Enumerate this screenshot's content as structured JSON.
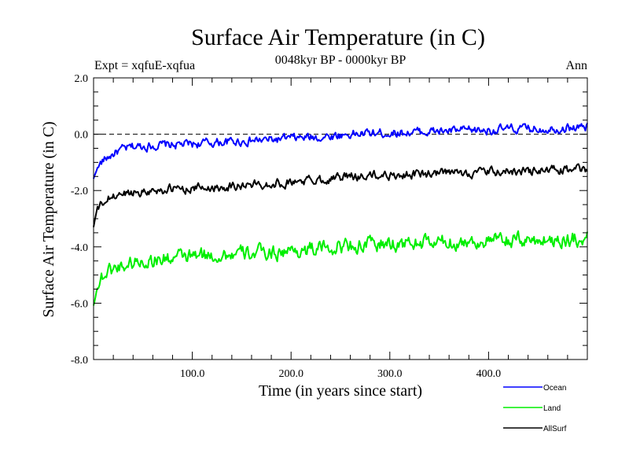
{
  "chart_data": {
    "type": "line",
    "title": "Surface Air Temperature (in C)",
    "subtitle": "0048kyr BP - 0000kyr BP",
    "left_label": "Expt = xqfuE-xqfua",
    "right_label": "Ann",
    "xlabel": "Time (in years since start)",
    "ylabel": "Surface Air Temperature (in C)",
    "xlim": [
      0,
      500
    ],
    "ylim": [
      -8,
      2
    ],
    "xticks": [
      100,
      200,
      300,
      400
    ],
    "xtick_labels": [
      "100.0",
      "200.0",
      "300.0",
      "400.0"
    ],
    "yticks": [
      -8,
      -6,
      -4,
      -2,
      0,
      2
    ],
    "ytick_labels": [
      "-8.0",
      "-6.0",
      "-4.0",
      "-2.0",
      "0.0",
      "2.0"
    ],
    "zero_line": 0,
    "series": [
      {
        "name": "Ocean",
        "color": "#0000ff",
        "points": [
          [
            0,
            -1.6
          ],
          [
            3,
            -1.25
          ],
          [
            8,
            -1.0
          ],
          [
            15,
            -0.8
          ],
          [
            25,
            -0.6
          ],
          [
            40,
            -0.45
          ],
          [
            60,
            -0.4
          ],
          [
            80,
            -0.38
          ],
          [
            100,
            -0.35
          ],
          [
            120,
            -0.3
          ],
          [
            150,
            -0.25
          ],
          [
            180,
            -0.2
          ],
          [
            200,
            -0.15
          ],
          [
            230,
            -0.1
          ],
          [
            260,
            0.0
          ],
          [
            300,
            0.05
          ],
          [
            350,
            0.1
          ],
          [
            400,
            0.15
          ],
          [
            450,
            0.2
          ],
          [
            500,
            0.25
          ]
        ]
      },
      {
        "name": "Land",
        "color": "#00ee00",
        "points": [
          [
            0,
            -6.1
          ],
          [
            3,
            -5.5
          ],
          [
            8,
            -5.1
          ],
          [
            15,
            -4.85
          ],
          [
            25,
            -4.7
          ],
          [
            40,
            -4.55
          ],
          [
            60,
            -4.45
          ],
          [
            80,
            -4.4
          ],
          [
            100,
            -4.35
          ],
          [
            120,
            -4.3
          ],
          [
            150,
            -4.25
          ],
          [
            180,
            -4.2
          ],
          [
            200,
            -4.15
          ],
          [
            230,
            -4.05
          ],
          [
            260,
            -3.95
          ],
          [
            300,
            -3.9
          ],
          [
            350,
            -3.85
          ],
          [
            400,
            -3.8
          ],
          [
            450,
            -3.75
          ],
          [
            500,
            -3.7
          ]
        ]
      },
      {
        "name": "AllSurf",
        "color": "#000000",
        "points": [
          [
            0,
            -3.3
          ],
          [
            3,
            -2.75
          ],
          [
            8,
            -2.5
          ],
          [
            15,
            -2.3
          ],
          [
            25,
            -2.15
          ],
          [
            40,
            -2.05
          ],
          [
            60,
            -2.0
          ],
          [
            80,
            -1.95
          ],
          [
            100,
            -1.92
          ],
          [
            120,
            -1.88
          ],
          [
            150,
            -1.82
          ],
          [
            180,
            -1.75
          ],
          [
            200,
            -1.7
          ],
          [
            230,
            -1.6
          ],
          [
            260,
            -1.5
          ],
          [
            300,
            -1.45
          ],
          [
            350,
            -1.4
          ],
          [
            400,
            -1.35
          ],
          [
            450,
            -1.3
          ],
          [
            500,
            -1.25
          ]
        ]
      }
    ],
    "legend_position": "bottom-right"
  }
}
